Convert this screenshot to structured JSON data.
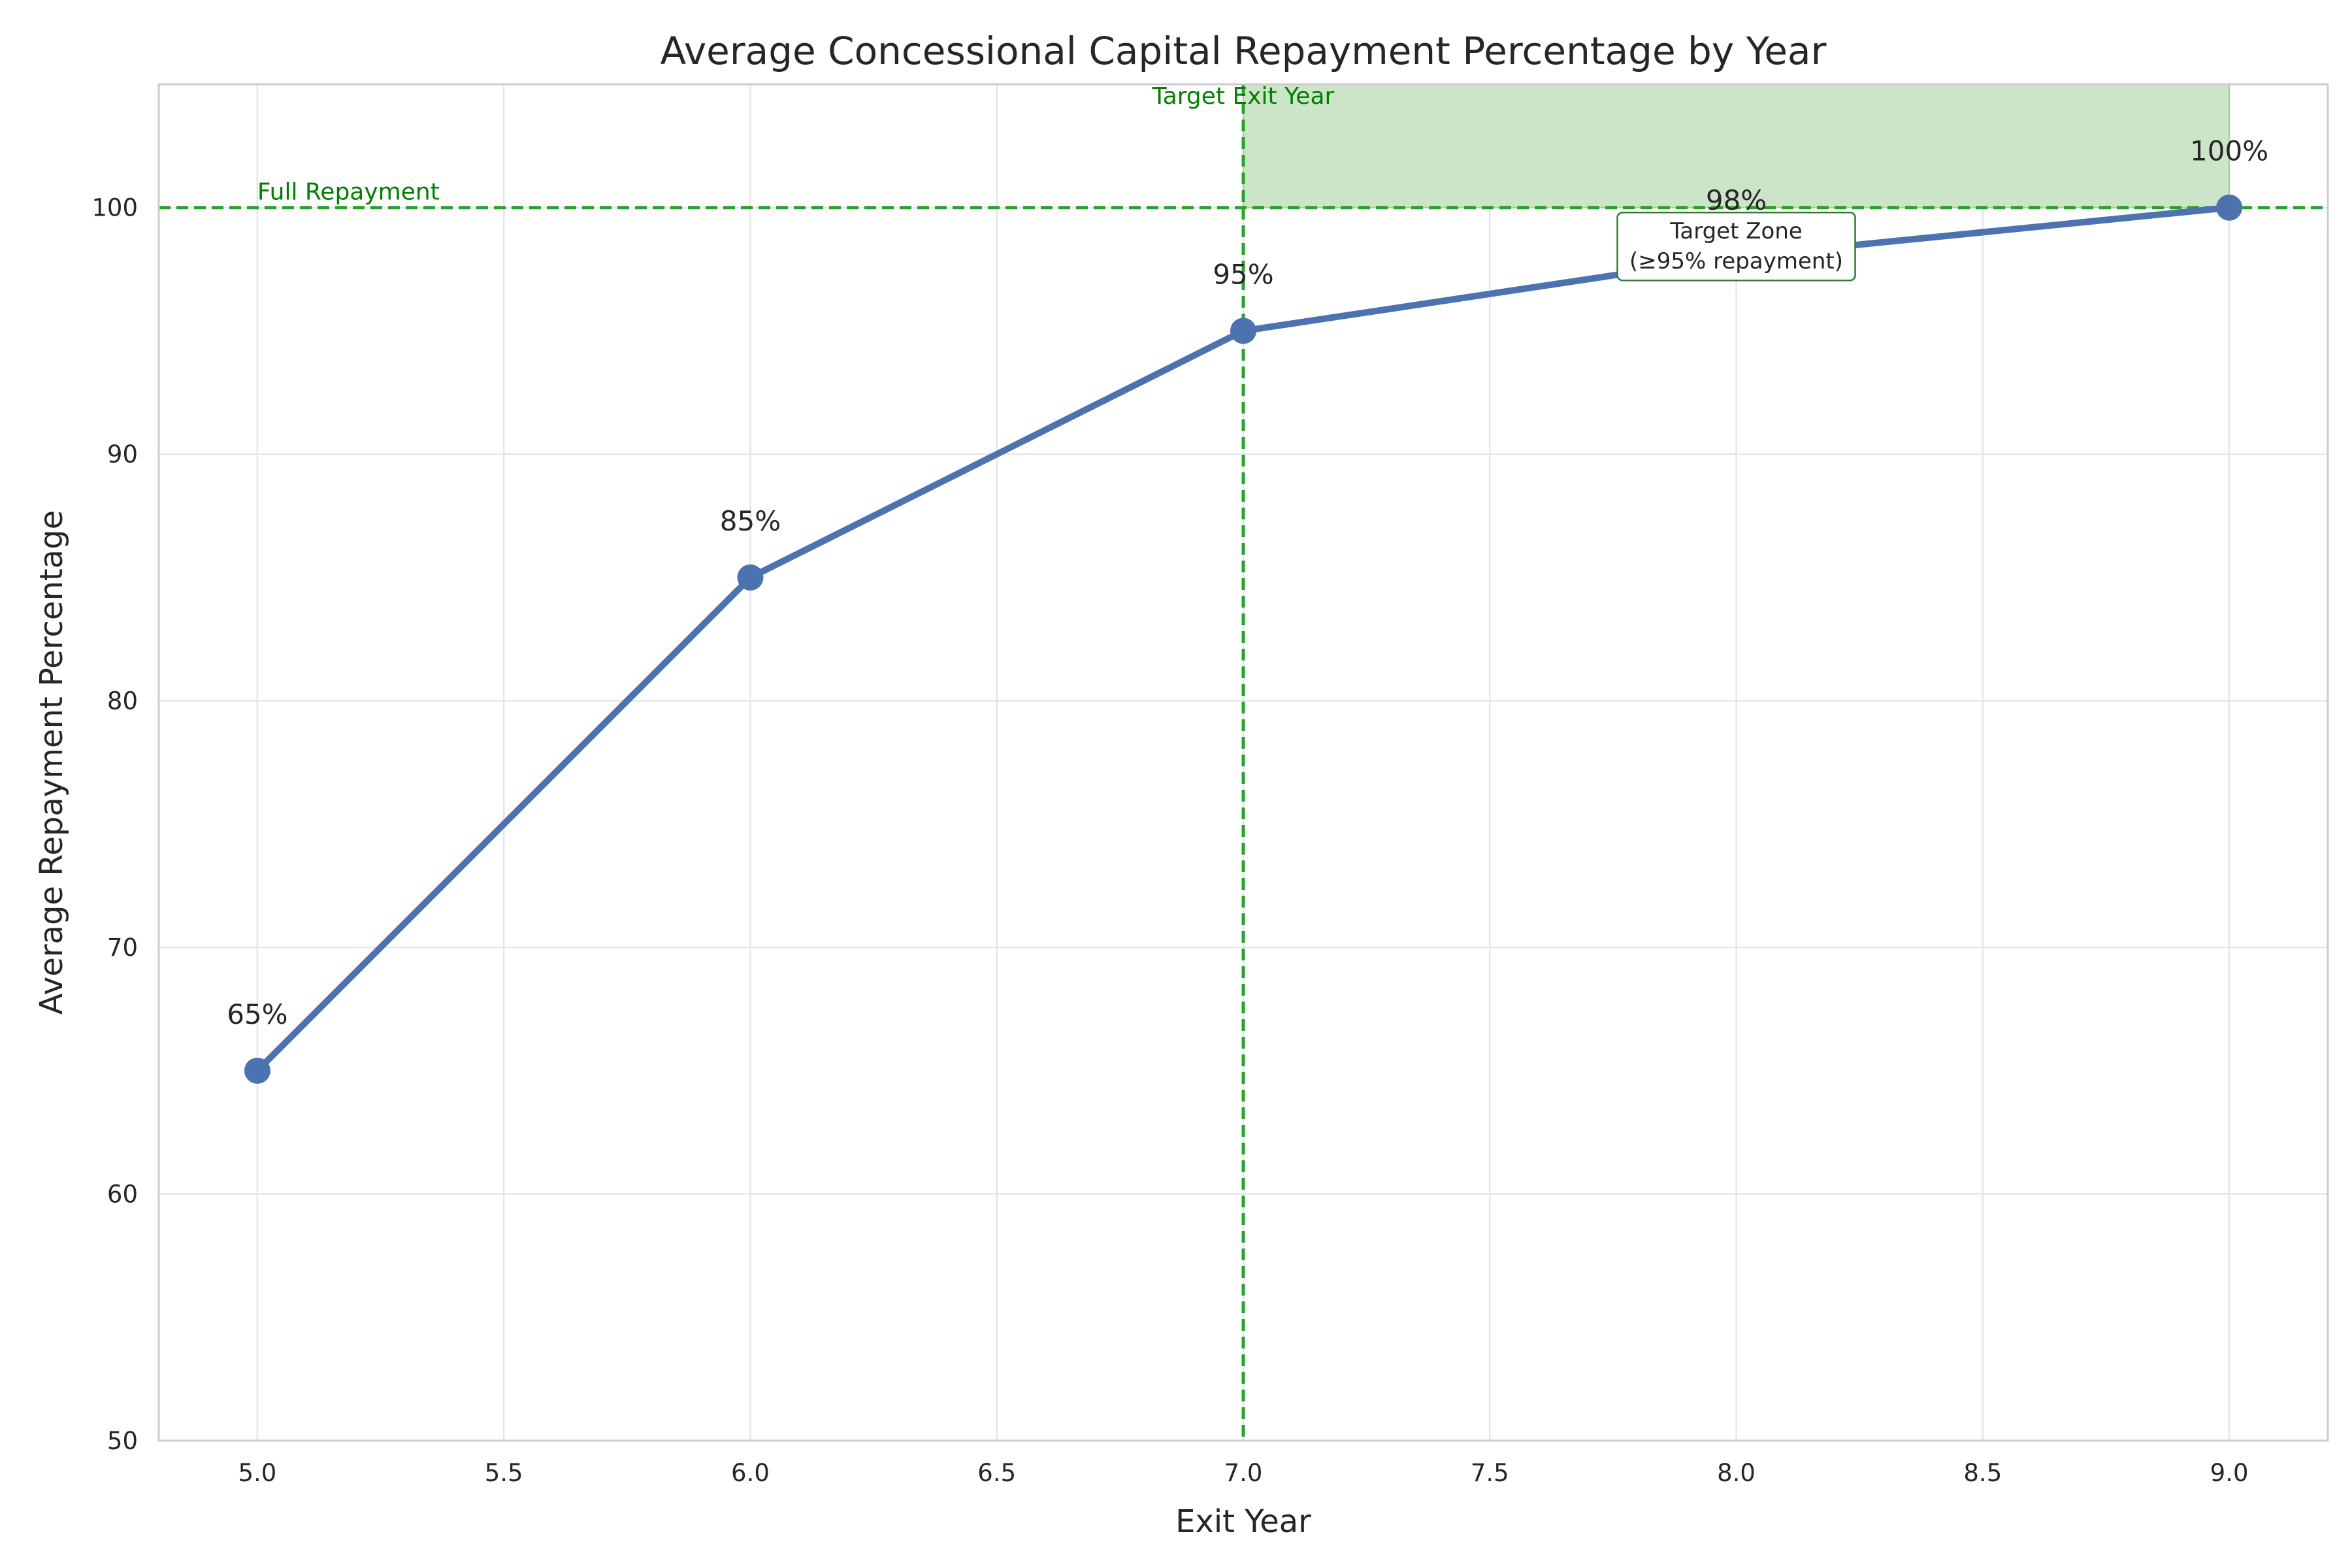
{
  "chart_data": {
    "type": "line",
    "title": "Average Concessional Capital Repayment Percentage by Year",
    "xlabel": "Exit Year",
    "ylabel": "Average Repayment Percentage",
    "xlim": [
      4.8,
      9.2
    ],
    "ylim": [
      50,
      105
    ],
    "x_ticks": [
      "5.0",
      "5.5",
      "6.0",
      "6.5",
      "7.0",
      "7.5",
      "8.0",
      "8.5",
      "9.0"
    ],
    "y_ticks": [
      "50",
      "60",
      "70",
      "80",
      "90",
      "100"
    ],
    "grid": true,
    "series": [
      {
        "x": [
          5,
          6,
          7,
          8,
          9
        ],
        "values": [
          65,
          85,
          95,
          98,
          100
        ],
        "labels": [
          "65%",
          "85%",
          "95%",
          "98%",
          "100%"
        ],
        "color": "#4c72b0"
      }
    ],
    "reference_lines": {
      "horizontal": {
        "y": 100,
        "label": "Full Repayment",
        "color": "#2ca02c"
      },
      "vertical": {
        "x": 7,
        "label": "Target Exit Year",
        "color": "#2ca02c"
      }
    },
    "shaded_region": {
      "x": [
        7,
        9
      ],
      "y": [
        100,
        105
      ],
      "color": "#c9e4c5",
      "label_line1": "Target Zone",
      "label_line2": "(≥95% repayment)"
    }
  }
}
